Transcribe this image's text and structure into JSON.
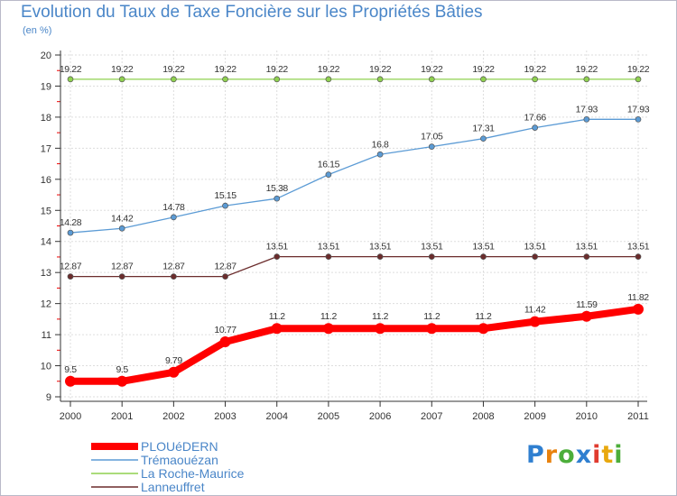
{
  "header": {
    "title": "Evolution du Taux de Taxe Foncière sur les Propriétés Bâties",
    "subtitle": "(en %)"
  },
  "logo": {
    "letters": [
      "P",
      "r",
      "o",
      "x",
      "i",
      "t",
      "i"
    ],
    "colors": [
      "#2f7fd0",
      "#e8820e",
      "#4cae3a",
      "#2f7fd0",
      "#e03b2f",
      "#e8a80e",
      "#4cae3a"
    ]
  },
  "colors": {
    "frame": "#b9b9c9",
    "grid": "#dddddd",
    "axis": "#333333",
    "title": "#4a86c8",
    "legend_text": "#4a86c8"
  },
  "chart_data": {
    "type": "line",
    "title": "Evolution du Taux de Taxe Foncière sur les Propriétés Bâties",
    "ylabel": "(en %)",
    "xlabel": "",
    "x": [
      "2000",
      "2001",
      "2002",
      "2003",
      "2004",
      "2005",
      "2006",
      "2007",
      "2008",
      "2009",
      "2010",
      "2011"
    ],
    "ylim": [
      9,
      20
    ],
    "yticks": [
      "9",
      "10",
      "11",
      "12",
      "13",
      "14",
      "15",
      "16",
      "17",
      "18",
      "19",
      "20"
    ],
    "grid": true,
    "legend_position": "bottom-left",
    "series": [
      {
        "name": "PLOUéDERN",
        "color": "#ff0000",
        "values": [
          9.5,
          9.5,
          9.79,
          10.77,
          11.2,
          11.2,
          11.2,
          11.2,
          11.2,
          11.42,
          11.59,
          11.82
        ],
        "labels": [
          "9.5",
          "9.5",
          "9.79",
          "10.77",
          "11.2",
          "11.2",
          "11.2",
          "11.2",
          "11.2",
          "11.42",
          "11.59",
          "11.82"
        ]
      },
      {
        "name": "Trémaouézan",
        "color": "#5b9bd5",
        "values": [
          14.28,
          14.42,
          14.78,
          15.15,
          15.38,
          16.15,
          16.8,
          17.05,
          17.31,
          17.66,
          17.93,
          17.93
        ],
        "labels": [
          "14.28",
          "14.42",
          "14.78",
          "15.15",
          "15.38",
          "16.15",
          "16.8",
          "17.05",
          "17.31",
          "17.66",
          "17.93",
          "17.93"
        ]
      },
      {
        "name": "La Roche-Maurice",
        "color": "#8fd14f",
        "values": [
          19.22,
          19.22,
          19.22,
          19.22,
          19.22,
          19.22,
          19.22,
          19.22,
          19.22,
          19.22,
          19.22,
          19.22
        ],
        "labels": [
          "19.22",
          "19.22",
          "19.22",
          "19.22",
          "19.22",
          "19.22",
          "19.22",
          "19.22",
          "19.22",
          "19.22",
          "19.22",
          "19.22"
        ]
      },
      {
        "name": "Lanneuffret",
        "color": "#6b2c2c",
        "values": [
          12.87,
          12.87,
          12.87,
          12.87,
          13.51,
          13.51,
          13.51,
          13.51,
          13.51,
          13.51,
          13.51,
          13.51
        ],
        "labels": [
          "12.87",
          "12.87",
          "12.87",
          "12.87",
          "13.51",
          "13.51",
          "13.51",
          "13.51",
          "13.51",
          "13.51",
          "13.51",
          "13.51"
        ]
      }
    ]
  }
}
